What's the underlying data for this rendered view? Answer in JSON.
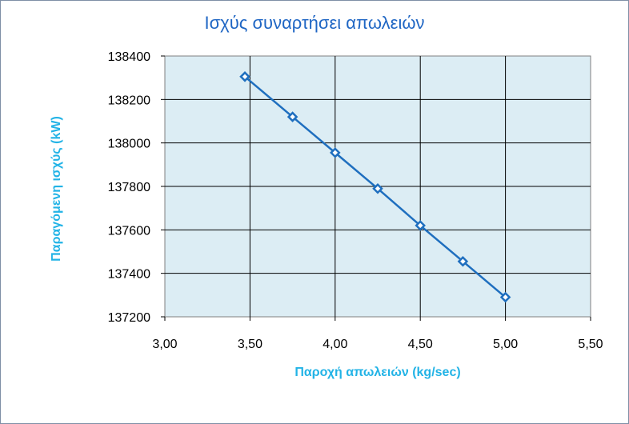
{
  "chart_data": {
    "type": "line",
    "title": "Ισχύς συναρτήσει απωλειών",
    "xlabel": "Παροχή απωλειών (kg/sec)",
    "ylabel": "Παραγόμενη ισχύς (kW)",
    "xlim": [
      3.0,
      5.5
    ],
    "ylim": [
      137200,
      138400
    ],
    "x_ticks": [
      "3,00",
      "3,50",
      "4,00",
      "4,50",
      "5,00",
      "5,50"
    ],
    "y_ticks": [
      "137200",
      "137400",
      "137600",
      "137800",
      "138000",
      "138200",
      "138400"
    ],
    "grid": true,
    "legend": "none",
    "series": [
      {
        "color": "#1f6fbf",
        "marker": "diamond",
        "x": [
          3.47,
          3.75,
          4.0,
          4.25,
          4.5,
          4.75,
          5.0
        ],
        "y": [
          138305,
          138120,
          137955,
          137790,
          137620,
          137455,
          137290
        ]
      }
    ],
    "colors": {
      "plot_background": "#dcedf4",
      "grid": "#000000",
      "title": "#1f66c4",
      "axis_labels": "#22b3e6"
    }
  }
}
